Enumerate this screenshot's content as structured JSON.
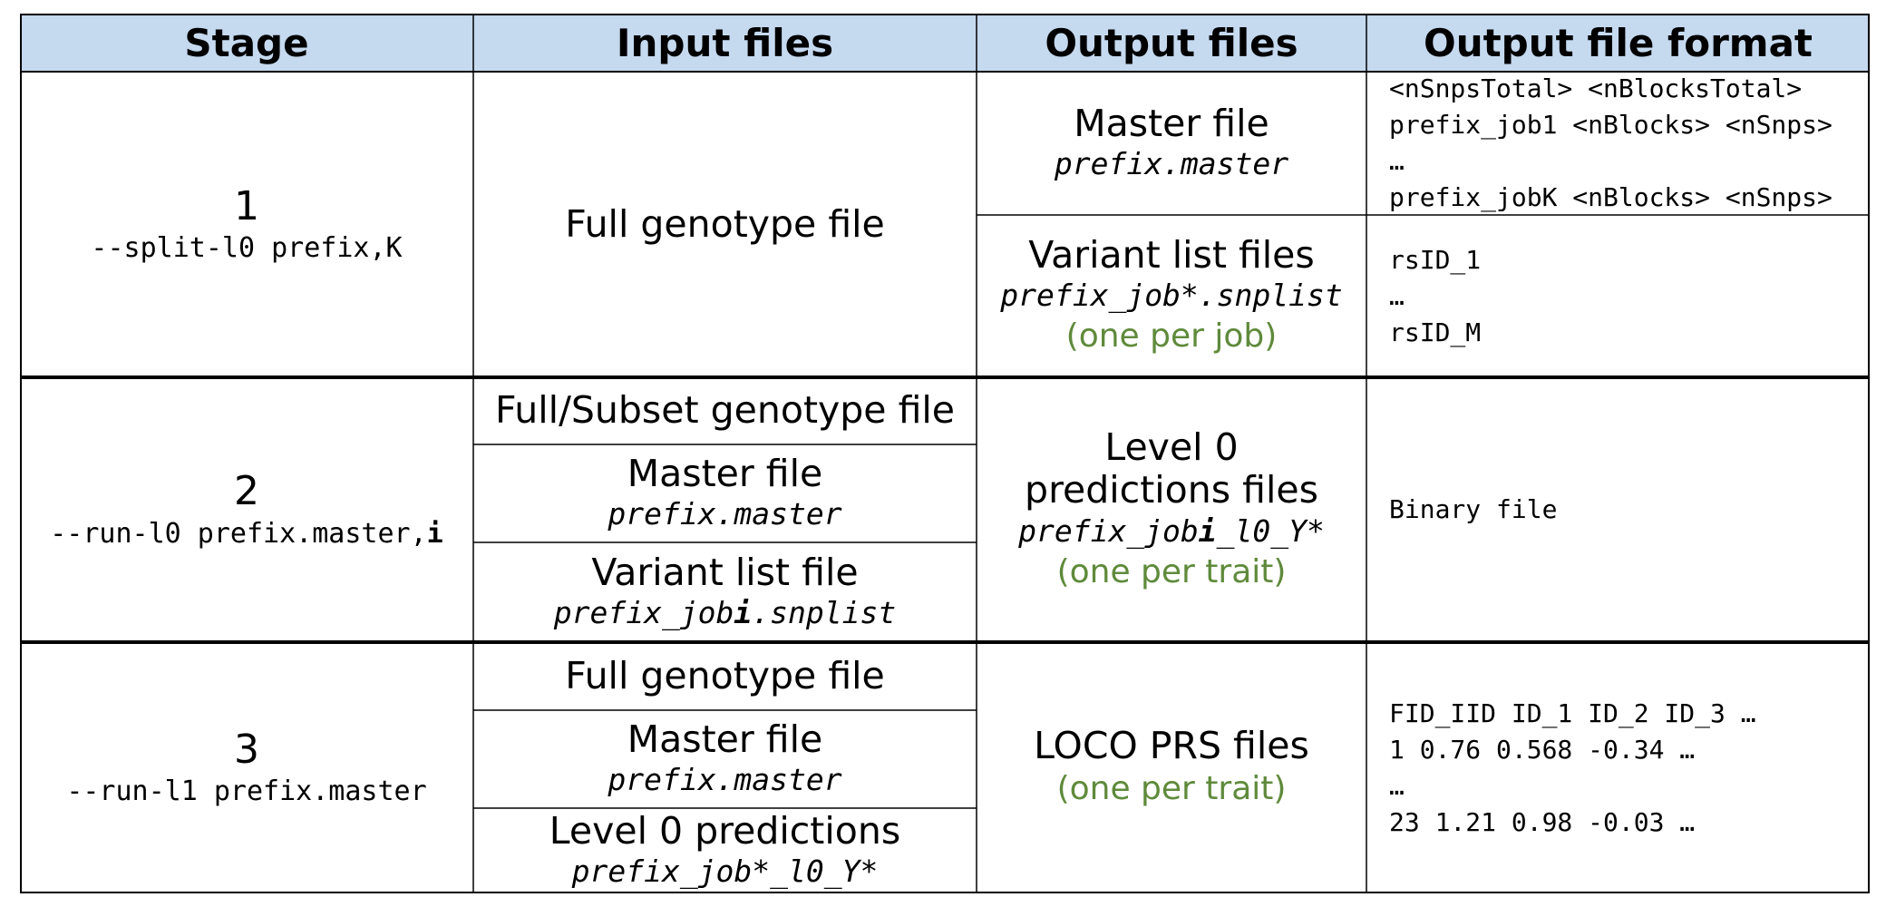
{
  "headers": {
    "stage": "Stage",
    "input": "Input files",
    "output": "Output files",
    "format": "Output file format"
  },
  "colors": {
    "header_bg": "#c5d9ef",
    "note_green": "#5f8a3b",
    "border": "#000000"
  },
  "rows": [
    {
      "stage_num": "1",
      "command": "--split-l0 prefix,K",
      "inputs": [
        {
          "name": "Full genotype file"
        }
      ],
      "outputs": [
        {
          "name": "Master file",
          "file": "prefix.master",
          "format_lines": [
            "<nSnpsTotal> <nBlocksTotal>",
            "prefix_job1 <nBlocks> <nSnps>",
            "…",
            "prefix_jobK <nBlocks> <nSnps>"
          ]
        },
        {
          "name": "Variant list files",
          "file": "prefix_job*.snplist",
          "note": "(one per job)",
          "format_lines": [
            "rsID_1",
            "…",
            "rsID_M"
          ]
        }
      ]
    },
    {
      "stage_num": "2",
      "command_main": "--run-l0 prefix.master,",
      "command_bold": "i",
      "inputs": [
        {
          "name": "Full/Subset genotype file"
        },
        {
          "name": "Master file",
          "file": "prefix.master"
        },
        {
          "name": "Variant list file",
          "file_pre": "prefix_job",
          "file_bold": "i",
          "file_post": ".snplist"
        }
      ],
      "outputs": [
        {
          "name_line1": "Level 0",
          "name_line2": "predictions files",
          "file_pre": "prefix_job",
          "file_bold": "i",
          "file_post": "_l0_Y*",
          "note": "(one per trait)",
          "format_lines": [
            "Binary file"
          ]
        }
      ]
    },
    {
      "stage_num": "3",
      "command": "--run-l1 prefix.master",
      "inputs": [
        {
          "name": "Full genotype file"
        },
        {
          "name": "Master file",
          "file": "prefix.master"
        },
        {
          "name": "Level 0 predictions",
          "file": "prefix_job*_l0_Y*"
        }
      ],
      "outputs": [
        {
          "name": "LOCO PRS files",
          "note": "(one per trait)",
          "format_lines": [
            "FID_IID ID_1 ID_2 ID_3 …",
            "1 0.76 0.568 -0.34 …",
            "…",
            "23 1.21 0.98 -0.03 …"
          ]
        }
      ]
    }
  ]
}
